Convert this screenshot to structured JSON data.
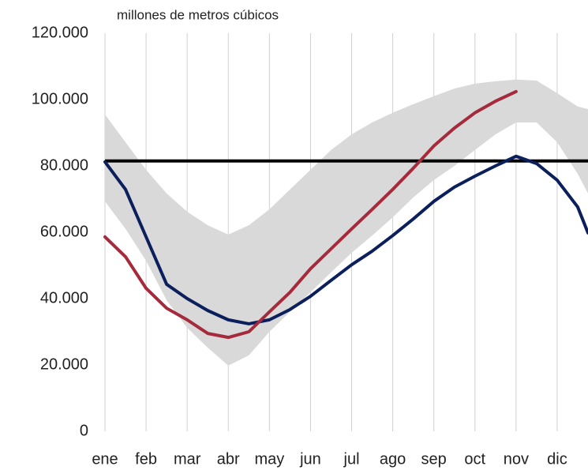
{
  "chart_data": {
    "type": "line",
    "subtitle": "millones de metros cúbicos",
    "x": [
      0,
      0.5,
      1,
      1.5,
      2,
      2.5,
      3,
      3.5,
      4,
      4.5,
      5,
      5.5,
      6,
      6.5,
      7,
      7.5,
      8,
      8.5,
      9,
      9.5,
      10,
      10.5,
      11,
      11.5,
      11.75
    ],
    "xlim": [
      0,
      11.75
    ],
    "xticks": [
      {
        "value": 0,
        "label": "ene"
      },
      {
        "value": 1,
        "label": "feb"
      },
      {
        "value": 2,
        "label": "mar"
      },
      {
        "value": 3,
        "label": "abr"
      },
      {
        "value": 4,
        "label": "may"
      },
      {
        "value": 5,
        "label": "jun"
      },
      {
        "value": 6,
        "label": "jul"
      },
      {
        "value": 7,
        "label": "ago"
      },
      {
        "value": 8,
        "label": "sep"
      },
      {
        "value": 9,
        "label": "oct"
      },
      {
        "value": 10,
        "label": "nov"
      },
      {
        "value": 11,
        "label": "dic"
      }
    ],
    "ylim": [
      0,
      120000
    ],
    "yticks": [
      0,
      {
        "value": 20000,
        "label": "20.000"
      },
      {
        "value": 40000,
        "label": "40.000"
      },
      {
        "value": 60000,
        "label": "60.000"
      },
      {
        "value": 80000,
        "label": "80.000"
      },
      {
        "value": 100000,
        "label": "100.000"
      },
      {
        "value": 120000,
        "label": "120.000"
      }
    ],
    "grid": true,
    "band": {
      "color": "#d9d9d9",
      "upper": [
        95500,
        87100,
        78800,
        71700,
        66200,
        62100,
        59300,
        62100,
        66900,
        72900,
        78800,
        84800,
        89500,
        93100,
        96000,
        98600,
        101000,
        103300,
        104800,
        105500,
        106000,
        105700,
        101900,
        97900,
        97100
      ],
      "lower": [
        69300,
        61000,
        51400,
        39500,
        31200,
        25200,
        19800,
        22900,
        30000,
        36000,
        41900,
        47900,
        53800,
        59000,
        64500,
        70500,
        75700,
        80000,
        84800,
        89500,
        93100,
        93100,
        87100,
        77600,
        71700
      ]
    },
    "reference_line": {
      "value": 81500,
      "color": "#000000"
    },
    "series": [
      {
        "color": "#0b1f5c",
        "values": [
          81200,
          72900,
          58600,
          44300,
          40000,
          36400,
          33600,
          32400,
          33600,
          36700,
          40700,
          45500,
          50200,
          54300,
          59000,
          64000,
          69300,
          73600,
          76900,
          80000,
          82900,
          80700,
          75700,
          67600,
          59800
        ]
      },
      {
        "color": "#a52a3c",
        "values": [
          58600,
          52600,
          43100,
          37100,
          33600,
          29500,
          28300,
          30000,
          36000,
          41900,
          49000,
          55000,
          61000,
          66900,
          72900,
          79300,
          86000,
          91400,
          96000,
          99500,
          102400,
          null,
          null,
          null,
          null
        ]
      }
    ]
  }
}
